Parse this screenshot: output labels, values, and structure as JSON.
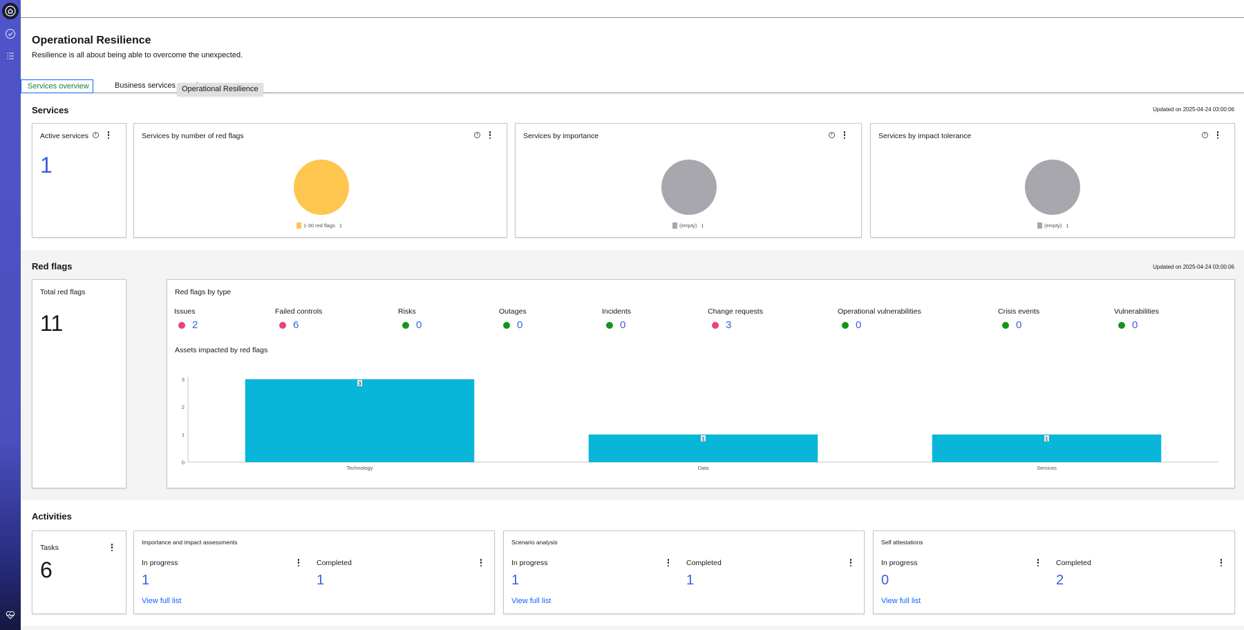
{
  "page": {
    "title": "Operational Resilience",
    "subtitle": "Resilience is all about being able to overcome the unexpected."
  },
  "tabs": [
    {
      "label": "Services overview",
      "active": true
    },
    {
      "label": "Business services overview",
      "active": false
    }
  ],
  "tooltip": "Operational Resilience",
  "services": {
    "title": "Services",
    "updated": "Updated on 2025-04-24 03:00:06",
    "active_services": {
      "title": "Active services",
      "value": "1"
    },
    "by_red_flags": {
      "title": "Services by number of red flags",
      "legend_label": "1-30 red flags",
      "legend_count": "1",
      "color": "#ffc64f"
    },
    "by_importance": {
      "title": "Services by importance",
      "legend_label": "(empty)",
      "legend_count": "1",
      "color": "#a7a7ad"
    },
    "by_impact": {
      "title": "Services by impact tolerance",
      "legend_label": "(empty)",
      "legend_count": "1",
      "color": "#a7a7ad"
    }
  },
  "red_flags": {
    "title": "Red flags",
    "updated": "Updated on 2025-04-24 03:00:06",
    "total": {
      "title": "Total red flags",
      "value": "11"
    },
    "by_type_title": "Red flags by type",
    "types": [
      {
        "label": "Issues",
        "value": "2",
        "status": "red"
      },
      {
        "label": "Failed controls",
        "value": "6",
        "status": "red"
      },
      {
        "label": "Risks",
        "value": "0",
        "status": "green"
      },
      {
        "label": "Outages",
        "value": "0",
        "status": "green"
      },
      {
        "label": "Incidents",
        "value": "0",
        "status": "green"
      },
      {
        "label": "Change requests",
        "value": "3",
        "status": "red"
      },
      {
        "label": "Operational vulnerabilities",
        "value": "0",
        "status": "green"
      },
      {
        "label": "Crisis events",
        "value": "0",
        "status": "green"
      },
      {
        "label": "Vulnerabilities",
        "value": "0",
        "status": "green"
      }
    ],
    "colors": {
      "red": "#e8437a",
      "green": "#14951f"
    },
    "assets_title": "Assets impacted by red flags"
  },
  "chart_data": {
    "type": "bar",
    "categories": [
      "Technology",
      "Data",
      "Services"
    ],
    "values": [
      3,
      1,
      1
    ],
    "yticks": [
      "0",
      "1",
      "2",
      "3"
    ],
    "ylim": [
      0,
      3
    ],
    "title": "Assets impacted by red flags",
    "color": "#08b6d9"
  },
  "activities": {
    "title": "Activities",
    "tasks": {
      "title": "Tasks",
      "value": "6"
    },
    "in_progress_label": "In progress",
    "completed_label": "Completed",
    "view_full_list": "View full list",
    "groups": [
      {
        "title": "Importance and impact assessments",
        "in_progress": "1",
        "completed": "1"
      },
      {
        "title": "Scenario analysis",
        "in_progress": "1",
        "completed": "1"
      },
      {
        "title": "Self attestations",
        "in_progress": "0",
        "completed": "2"
      }
    ]
  }
}
